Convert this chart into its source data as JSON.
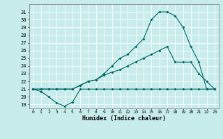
{
  "xlabel": "Humidex (Indice chaleur)",
  "bg_color": "#c8ecec",
  "grid_color": "#ffffff",
  "line_color": "#006666",
  "xlim": [
    -0.5,
    23.5
  ],
  "ylim": [
    18.5,
    32
  ],
  "xticks": [
    0,
    1,
    2,
    3,
    4,
    5,
    6,
    7,
    8,
    9,
    10,
    11,
    12,
    13,
    14,
    15,
    16,
    17,
    18,
    19,
    20,
    21,
    22,
    23
  ],
  "yticks": [
    19,
    20,
    21,
    22,
    23,
    24,
    25,
    26,
    27,
    28,
    29,
    30,
    31
  ],
  "line1_x": [
    0,
    1,
    2,
    3,
    4,
    5,
    6,
    7,
    8,
    9,
    10,
    11,
    12,
    13,
    14,
    15,
    16,
    17,
    18,
    19,
    20,
    21,
    22,
    23
  ],
  "line1_y": [
    21,
    20.7,
    20,
    19.2,
    18.8,
    19.3,
    21,
    21,
    21,
    21,
    21,
    21,
    21,
    21,
    21,
    21,
    21,
    21,
    21,
    21,
    21,
    21,
    21,
    21
  ],
  "line2_x": [
    0,
    1,
    2,
    3,
    4,
    5,
    6,
    7,
    8,
    9,
    10,
    11,
    12,
    13,
    14,
    15,
    16,
    17,
    18,
    19,
    20,
    21,
    22,
    23
  ],
  "line2_y": [
    21,
    21,
    21,
    21,
    21,
    21,
    21.5,
    22,
    22.2,
    23,
    24,
    25,
    25.5,
    26.5,
    27.5,
    30,
    31,
    31,
    30.5,
    29,
    26.5,
    24.5,
    21,
    21
  ],
  "line3_x": [
    0,
    1,
    2,
    3,
    4,
    5,
    6,
    7,
    8,
    9,
    10,
    11,
    12,
    13,
    14,
    15,
    16,
    17,
    18,
    19,
    20,
    21,
    22,
    23
  ],
  "line3_y": [
    21,
    21,
    21,
    21,
    21,
    21,
    21.5,
    22,
    22.2,
    22.8,
    23.2,
    23.5,
    24,
    24.5,
    25,
    25.5,
    26,
    26.5,
    24.5,
    24.5,
    24.5,
    23,
    22,
    21
  ]
}
